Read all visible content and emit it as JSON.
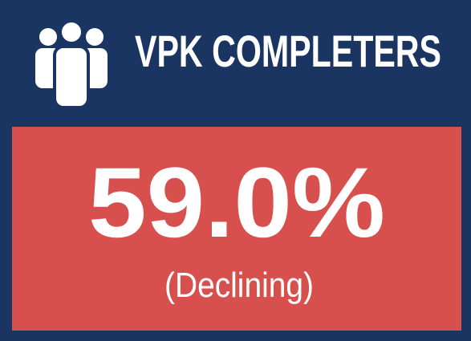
{
  "header": {
    "title": "VPK COMPLETERS"
  },
  "kpi": {
    "value": "59.0%",
    "status": "(Declining)"
  }
}
